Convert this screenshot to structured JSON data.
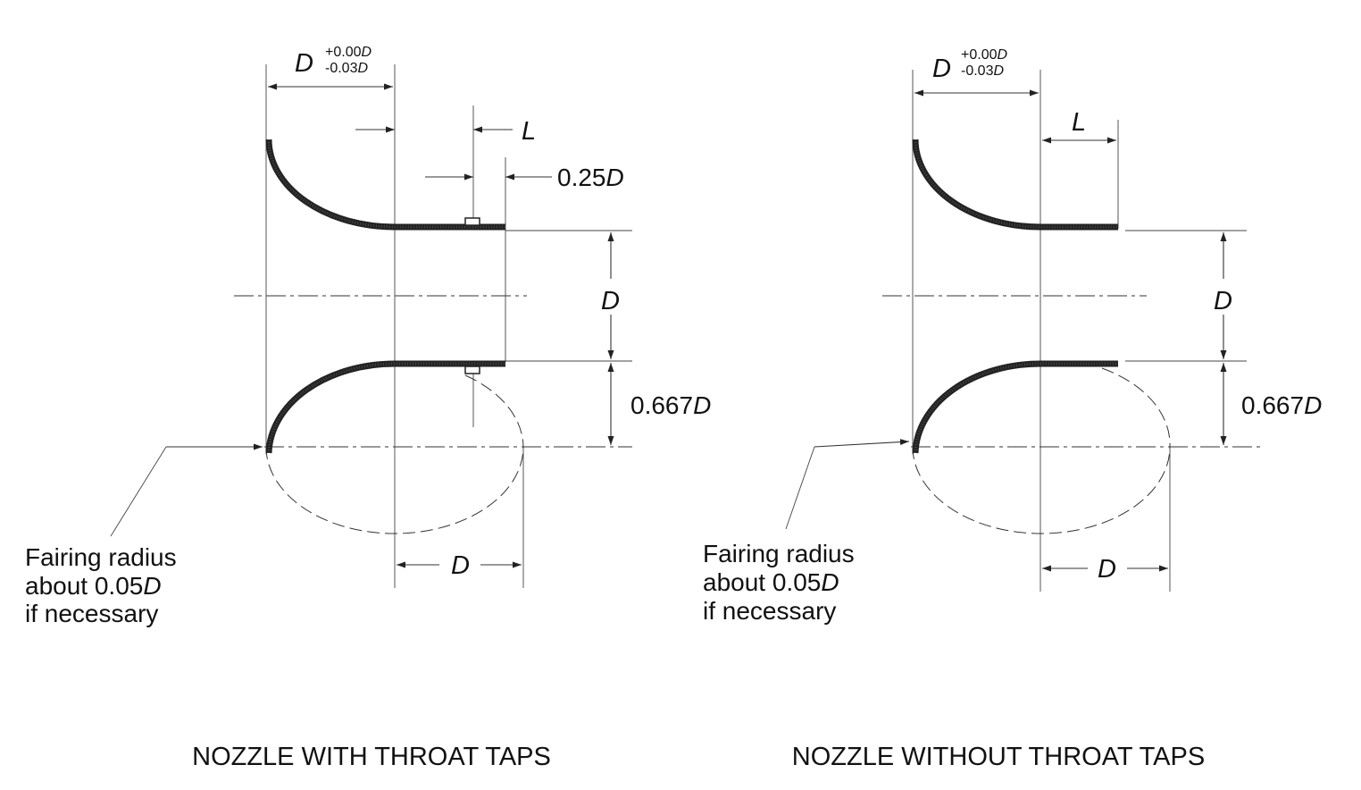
{
  "left": {
    "caption": "NOZZLE WITH THROAT TAPS",
    "dim_D_top": {
      "symbol": "D",
      "tol_plus": "+0.00",
      "tol_minus": "-0.03",
      "tol_unit": "D"
    },
    "dim_L": "L",
    "dim_tap": {
      "value": "0.25",
      "unit": "D"
    },
    "dim_throat": "D",
    "dim_radius": {
      "value": "0.667",
      "unit": "D"
    },
    "dim_ellipse": "D",
    "note": {
      "line1": "Fairing radius",
      "line2_text": "about 0.05",
      "line2_unit": "D",
      "line3": "if necessary"
    }
  },
  "right": {
    "caption": "NOZZLE WITHOUT THROAT TAPS",
    "dim_D_top": {
      "symbol": "D",
      "tol_plus": "+0.00",
      "tol_minus": "-0.03",
      "tol_unit": "D"
    },
    "dim_L": "L",
    "dim_throat": "D",
    "dim_radius": {
      "value": "0.667",
      "unit": "D"
    },
    "dim_ellipse": "D",
    "note": {
      "line1": "Fairing radius",
      "line2_text": "about 0.05",
      "line2_unit": "D",
      "line3": "if necessary"
    }
  }
}
